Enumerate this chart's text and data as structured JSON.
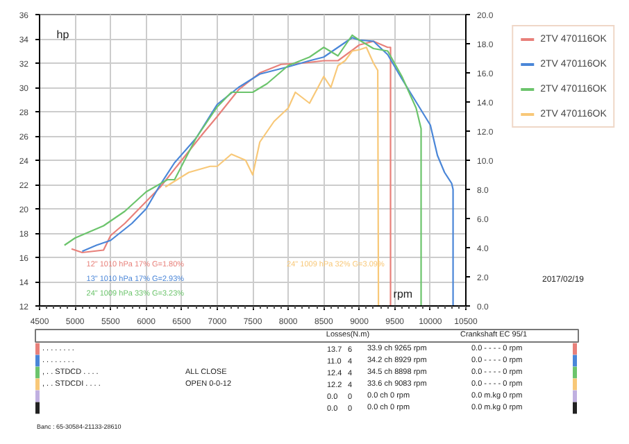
{
  "chart_data": {
    "type": "line",
    "ylabel": "hp",
    "xlabel": "rpm",
    "xlim": [
      4500,
      10500
    ],
    "xticks": [
      4500,
      5000,
      5500,
      6000,
      6500,
      7000,
      7500,
      8000,
      8500,
      9000,
      9500,
      10000,
      10500
    ],
    "ylim": [
      12,
      36
    ],
    "yticks": [
      12,
      14,
      16,
      18,
      20,
      22,
      24,
      26,
      28,
      30,
      32,
      34,
      36
    ],
    "y2lim": [
      0,
      20
    ],
    "y2ticks": [
      {
        "value": 0,
        "label": "0.0"
      },
      {
        "value": 2,
        "label": "2.0"
      },
      {
        "value": 4,
        "label": "4.0"
      },
      {
        "value": 6,
        "label": "6.0"
      },
      {
        "value": 8,
        "label": "8.0"
      },
      {
        "value": 10,
        "label": "10.0"
      },
      {
        "value": 12,
        "label": "12.0"
      },
      {
        "value": 14,
        "label": "14.0"
      },
      {
        "value": 16,
        "label": "16.0"
      },
      {
        "value": 18,
        "label": "18.0"
      },
      {
        "value": 20,
        "label": "20.0"
      }
    ],
    "grid": true,
    "legend": "right",
    "marker": "none",
    "line_style": "solid",
    "series": [
      {
        "name": "2TV 470116OK",
        "color": "#e8807a",
        "x": [
          4950,
          5100,
          5400,
          5500,
          5700,
          6000,
          6200,
          6500,
          6800,
          7000,
          7300,
          7600,
          7900,
          8200,
          8500,
          8700,
          9000,
          9200,
          9400,
          9440,
          9440
        ],
        "values": [
          16.7,
          16.4,
          16.6,
          17.8,
          18.8,
          20.6,
          21.8,
          24,
          26.2,
          27.6,
          29.8,
          31.2,
          31.9,
          32,
          32.2,
          32.2,
          33.5,
          33.8,
          33.3,
          33.3,
          12
        ]
      },
      {
        "name": "2TV 470116OK",
        "color": "#4a86d8",
        "x": [
          5100,
          5300,
          5500,
          5800,
          6000,
          6200,
          6400,
          6700,
          7000,
          7300,
          7600,
          8000,
          8300,
          8500,
          8700,
          8900,
          9000,
          9200,
          9400,
          9600,
          9800,
          10000,
          10100,
          10200,
          10300,
          10320,
          10320
        ],
        "values": [
          16.5,
          17,
          17.4,
          18.8,
          20,
          22,
          23.8,
          25.8,
          28.6,
          30,
          31.1,
          31.7,
          32.2,
          32.5,
          33.3,
          34.1,
          33.9,
          33.8,
          32.7,
          30.7,
          28.8,
          26.9,
          24.4,
          23,
          22.1,
          21.6,
          12
        ]
      },
      {
        "name": "2TV 470116OK",
        "color": "#6cc46c",
        "x": [
          4850,
          5000,
          5400,
          5700,
          6000,
          6300,
          6400,
          6700,
          7000,
          7200,
          7500,
          7700,
          8000,
          8300,
          8500,
          8700,
          8900,
          9000,
          9200,
          9400,
          9600,
          9800,
          9870,
          9870
        ],
        "values": [
          17,
          17.6,
          18.6,
          19.8,
          21.4,
          22.4,
          22.4,
          25.8,
          28.4,
          29.6,
          29.6,
          30.3,
          31.8,
          32.5,
          33.3,
          32.6,
          34.3,
          33.9,
          33.2,
          33,
          30.9,
          28.3,
          26.6,
          12
        ]
      },
      {
        "name": "2TV 470116OK",
        "color": "#f8c878",
        "x": [
          6270,
          6600,
          6900,
          7000,
          7200,
          7400,
          7500,
          7600,
          7800,
          8000,
          8100,
          8300,
          8500,
          8600,
          8700,
          8800,
          8900,
          9000,
          9100,
          9200,
          9260,
          9270
        ],
        "values": [
          21.8,
          23,
          23.5,
          23.5,
          24.5,
          24,
          22.8,
          25.5,
          27.2,
          28.3,
          29.6,
          28.7,
          30.9,
          30,
          31.8,
          32.2,
          33,
          33.1,
          33.3,
          32,
          31.4,
          12
        ]
      }
    ],
    "annotations": [
      "12\"  1010 hPa  17%   G=1.80%",
      "13\"  1010 hPa  17%   G=2.93%",
      "24\"  1009 hPa  33%   G=3.23%",
      "24\"  1009 hPa  32%   G=3.09%",
      "2017/02/19",
      "Losses(N.m)",
      "Crankshaft EC 95/1",
      ". . . . . . . .",
      null,
      "13.7",
      "6",
      "33.9 ch 9265 rpm",
      "0.0 - - - - 0 rpm",
      ". . . . . . . .",
      null,
      "11.0",
      "4",
      "34.2 ch 8929 rpm",
      "0.0 - - - - 0 rpm",
      ", . . STDCD . . . .",
      "ALL CLOSE",
      "12.4",
      "4",
      "34.5 ch 8898 rpm",
      "0.0 - - - - 0 rpm",
      ", . . STDCDI . . . .",
      "OPEN 0-0-12",
      "12.2",
      "4",
      "33.6 ch 9083 rpm",
      "0.0 - - - - 0 rpm",
      null,
      null,
      "0.0",
      "0",
      "0.0 ch 0 rpm",
      "0.0 m.kg 0 rpm",
      null,
      null,
      "0.0",
      "0",
      "0.0 ch 0 rpm",
      "0.0 m.kg 0 rpm",
      "Banc : 65-30584-21133-28610"
    ]
  }
}
